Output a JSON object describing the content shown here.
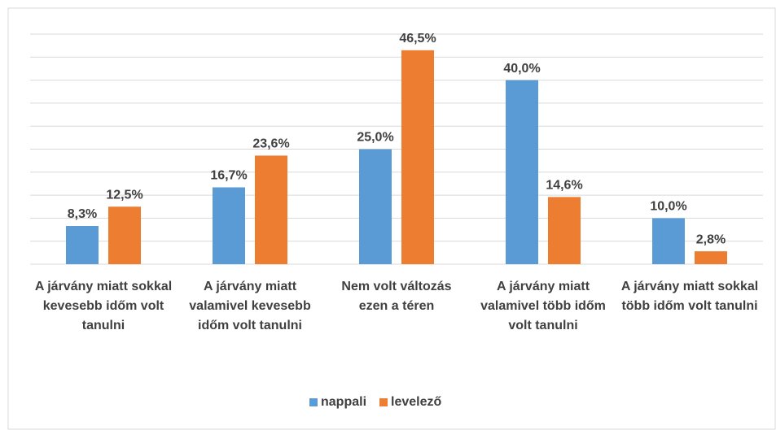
{
  "chart_data": {
    "type": "bar",
    "categories": [
      "A járvány miatt sokkal kevesebb időm volt tanulni",
      "A járvány miatt valamivel kevesebb időm volt tanulni",
      "Nem volt változás ezen a téren",
      "A járvány miatt valamivel több időm volt tanulni",
      "A járvány miatt sokkal több időm volt tanulni"
    ],
    "series": [
      {
        "name": "nappali",
        "color": "#5b9bd5",
        "values": [
          8.3,
          16.7,
          25.0,
          40.0,
          10.0
        ],
        "value_labels": [
          "8,3%",
          "16,7%",
          "25,0%",
          "40,0%",
          "10,0%"
        ]
      },
      {
        "name": "levelező",
        "color": "#ed7d31",
        "values": [
          12.5,
          23.6,
          46.5,
          14.6,
          2.8
        ],
        "value_labels": [
          "12,5%",
          "23,6%",
          "46,5%",
          "14,6%",
          "2,8%"
        ]
      }
    ],
    "ylim": [
      0,
      50
    ],
    "yticks": [
      0,
      5,
      10,
      15,
      20,
      25,
      30,
      35,
      40,
      45,
      50
    ],
    "grid": true,
    "legend": "bottom"
  }
}
